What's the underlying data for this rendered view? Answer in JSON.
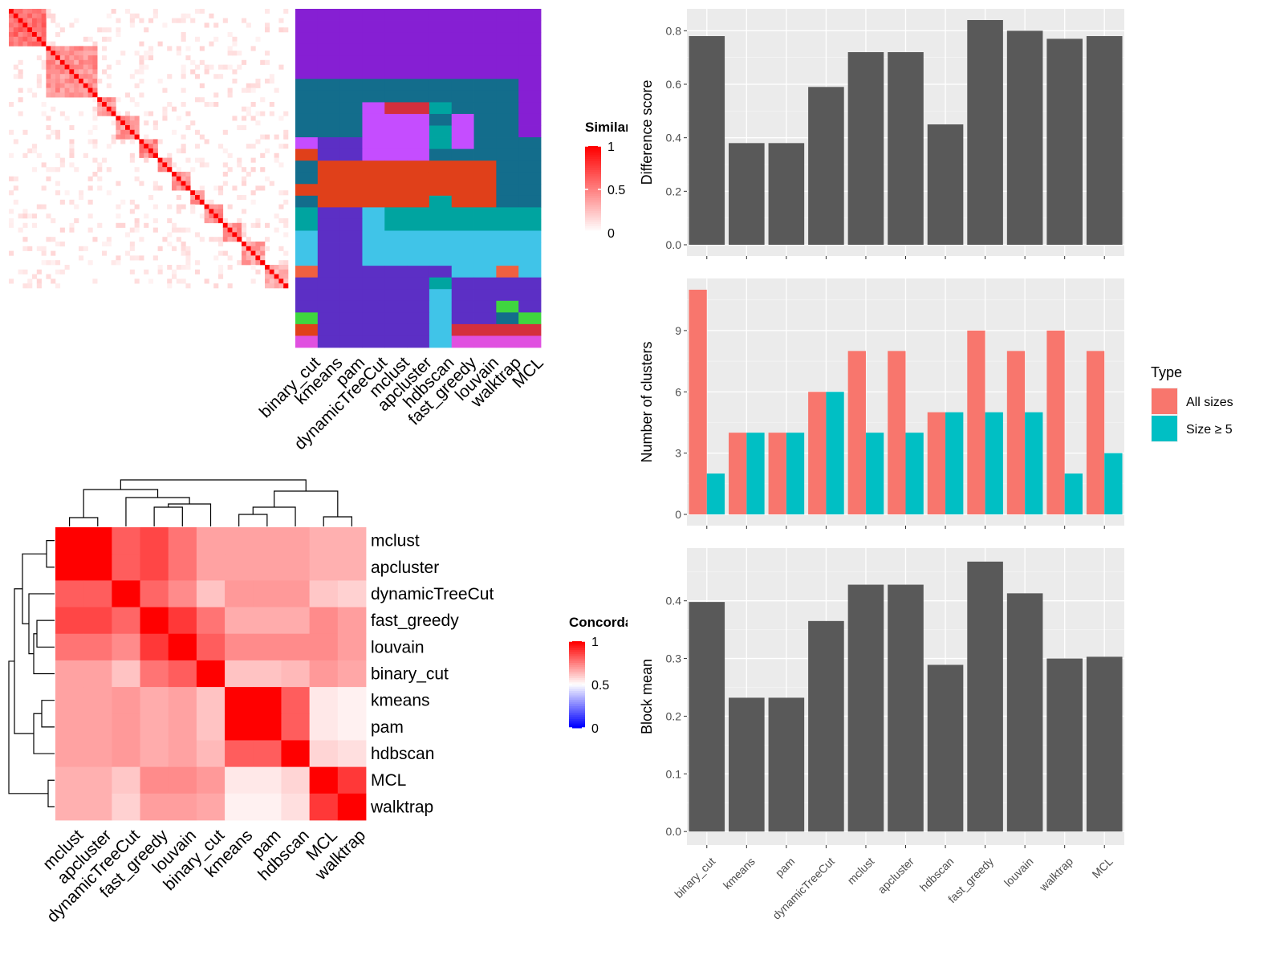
{
  "chart_data": [
    {
      "type": "heatmap",
      "id": "similarity-matrix",
      "title": "",
      "legend_title": "Similarity",
      "legend_ticks": [
        "1",
        "0.5",
        "0"
      ],
      "n": 60,
      "description_blocks": [
        {
          "start": 0,
          "end": 8,
          "strength": 0.45
        },
        {
          "start": 8,
          "end": 19,
          "strength": 0.3
        },
        {
          "start": 19,
          "end": 23,
          "strength": 0.3
        },
        {
          "start": 23,
          "end": 28,
          "strength": 0.3
        },
        {
          "start": 28,
          "end": 32,
          "strength": 0.35
        },
        {
          "start": 32,
          "end": 35,
          "strength": 0.3
        },
        {
          "start": 35,
          "end": 39,
          "strength": 0.3
        },
        {
          "start": 39,
          "end": 42,
          "strength": 0.3
        },
        {
          "start": 42,
          "end": 46,
          "strength": 0.3
        },
        {
          "start": 46,
          "end": 50,
          "strength": 0.3
        },
        {
          "start": 50,
          "end": 55,
          "strength": 0.25
        },
        {
          "start": 55,
          "end": 60,
          "strength": 0.2
        }
      ]
    },
    {
      "type": "heatmap",
      "id": "cluster-assignments",
      "methods": [
        "binary_cut",
        "kmeans",
        "pam",
        "dynamicTreeCut",
        "mclust",
        "apcluster",
        "hdbscan",
        "fast_greedy",
        "louvain",
        "walktrap",
        "MCL"
      ],
      "colors": [
        "#861fd3",
        "#136d8c",
        "#c54dff",
        "#d42f3d",
        "#00a4a0",
        "#5c2fc5",
        "#e0401a",
        "#40c4e8",
        "#3fd63f",
        "#e050e0",
        "#f06040"
      ],
      "rows": [
        [
          0,
          0,
          0,
          0,
          0,
          0,
          0,
          0,
          0,
          0,
          0
        ],
        [
          0,
          0,
          0,
          0,
          0,
          0,
          0,
          0,
          0,
          0,
          0
        ],
        [
          0,
          0,
          0,
          0,
          0,
          0,
          0,
          0,
          0,
          0,
          0
        ],
        [
          0,
          0,
          0,
          0,
          0,
          0,
          0,
          0,
          0,
          0,
          0
        ],
        [
          0,
          0,
          0,
          0,
          0,
          0,
          0,
          0,
          0,
          0,
          0
        ],
        [
          0,
          0,
          0,
          0,
          0,
          0,
          0,
          0,
          0,
          0,
          0
        ],
        [
          1,
          1,
          1,
          1,
          1,
          1,
          1,
          1,
          1,
          1,
          0
        ],
        [
          1,
          1,
          1,
          1,
          1,
          1,
          1,
          1,
          1,
          1,
          0
        ],
        [
          1,
          1,
          1,
          2,
          3,
          3,
          4,
          1,
          1,
          1,
          0
        ],
        [
          1,
          1,
          1,
          2,
          2,
          2,
          1,
          2,
          1,
          1,
          0
        ],
        [
          1,
          1,
          1,
          2,
          2,
          2,
          4,
          2,
          1,
          1,
          0
        ],
        [
          2,
          5,
          5,
          2,
          2,
          2,
          4,
          2,
          1,
          1,
          1
        ],
        [
          6,
          5,
          5,
          2,
          2,
          2,
          1,
          1,
          1,
          1,
          1
        ],
        [
          1,
          6,
          6,
          6,
          6,
          6,
          6,
          6,
          6,
          1,
          1
        ],
        [
          1,
          6,
          6,
          6,
          6,
          6,
          6,
          6,
          6,
          1,
          1
        ],
        [
          6,
          6,
          6,
          6,
          6,
          6,
          6,
          6,
          6,
          1,
          1
        ],
        [
          1,
          6,
          6,
          6,
          6,
          6,
          4,
          6,
          6,
          1,
          1
        ],
        [
          4,
          5,
          5,
          7,
          4,
          4,
          4,
          4,
          4,
          4,
          4
        ],
        [
          4,
          5,
          5,
          7,
          4,
          4,
          4,
          4,
          4,
          4,
          4
        ],
        [
          7,
          5,
          5,
          7,
          7,
          7,
          7,
          7,
          7,
          7,
          7
        ],
        [
          7,
          5,
          5,
          7,
          7,
          7,
          7,
          7,
          7,
          7,
          7
        ],
        [
          7,
          5,
          5,
          7,
          7,
          7,
          7,
          7,
          7,
          7,
          7
        ],
        [
          10,
          5,
          5,
          5,
          5,
          5,
          5,
          7,
          7,
          10,
          7
        ],
        [
          5,
          5,
          5,
          5,
          5,
          5,
          4,
          5,
          5,
          5,
          5
        ],
        [
          5,
          5,
          5,
          5,
          5,
          5,
          7,
          5,
          5,
          5,
          5
        ],
        [
          5,
          5,
          5,
          5,
          5,
          5,
          7,
          5,
          5,
          8,
          5
        ],
        [
          8,
          5,
          5,
          5,
          5,
          5,
          7,
          5,
          5,
          1,
          8
        ],
        [
          6,
          5,
          5,
          5,
          5,
          5,
          7,
          3,
          3,
          3,
          3
        ],
        [
          9,
          5,
          5,
          5,
          5,
          5,
          7,
          9,
          9,
          9,
          9
        ]
      ]
    },
    {
      "type": "heatmap",
      "id": "concordance-matrix",
      "legend_title": "Concordance",
      "legend_ticks": [
        "1",
        "0.5",
        "0"
      ],
      "row_labels": [
        "mclust",
        "apcluster",
        "dynamicTreeCut",
        "fast_greedy",
        "louvain",
        "binary_cut",
        "kmeans",
        "pam",
        "hdbscan",
        "MCL",
        "walktrap"
      ],
      "col_labels": [
        "mclust",
        "apcluster",
        "dynamicTreeCut",
        "fast_greedy",
        "louvain",
        "binary_cut",
        "kmeans",
        "pam",
        "hdbscan",
        "MCL",
        "walktrap"
      ],
      "values": [
        [
          1.0,
          1.0,
          0.8,
          0.85,
          0.75,
          0.65,
          0.65,
          0.65,
          0.65,
          0.62,
          0.62
        ],
        [
          1.0,
          1.0,
          0.8,
          0.85,
          0.75,
          0.65,
          0.65,
          0.65,
          0.65,
          0.62,
          0.62
        ],
        [
          0.8,
          0.8,
          1.0,
          0.78,
          0.7,
          0.58,
          0.67,
          0.67,
          0.67,
          0.57,
          0.55
        ],
        [
          0.85,
          0.85,
          0.78,
          1.0,
          0.88,
          0.75,
          0.63,
          0.63,
          0.63,
          0.7,
          0.66
        ],
        [
          0.75,
          0.75,
          0.7,
          0.88,
          1.0,
          0.8,
          0.7,
          0.7,
          0.7,
          0.7,
          0.66
        ],
        [
          0.65,
          0.65,
          0.58,
          0.75,
          0.8,
          1.0,
          0.58,
          0.58,
          0.6,
          0.67,
          0.64
        ],
        [
          0.65,
          0.65,
          0.67,
          0.63,
          0.65,
          0.58,
          1.0,
          1.0,
          0.8,
          0.5,
          0.48
        ],
        [
          0.65,
          0.65,
          0.67,
          0.63,
          0.65,
          0.58,
          1.0,
          1.0,
          0.8,
          0.5,
          0.48
        ],
        [
          0.65,
          0.65,
          0.67,
          0.63,
          0.65,
          0.6,
          0.8,
          0.8,
          1.0,
          0.54,
          0.52
        ],
        [
          0.62,
          0.62,
          0.57,
          0.7,
          0.7,
          0.67,
          0.5,
          0.5,
          0.54,
          1.0,
          0.88
        ],
        [
          0.62,
          0.62,
          0.55,
          0.66,
          0.66,
          0.64,
          0.48,
          0.48,
          0.52,
          0.88,
          1.0
        ]
      ]
    },
    {
      "type": "bar",
      "id": "difference-score",
      "categories": [
        "binary_cut",
        "kmeans",
        "pam",
        "dynamicTreeCut",
        "mclust",
        "apcluster",
        "hdbscan",
        "fast_greedy",
        "louvain",
        "walktrap",
        "MCL"
      ],
      "values": [
        0.78,
        0.38,
        0.38,
        0.59,
        0.72,
        0.72,
        0.45,
        0.84,
        0.8,
        0.77,
        0.78
      ],
      "ylabel": "Difference score",
      "ylim": [
        0,
        0.84
      ],
      "yticks": [
        "0.0",
        "0.2",
        "0.4",
        "0.6",
        "0.8"
      ],
      "color": "#595959",
      "grid": true
    },
    {
      "type": "bar",
      "id": "number-of-clusters",
      "categories": [
        "binary_cut",
        "kmeans",
        "pam",
        "dynamicTreeCut",
        "mclust",
        "apcluster",
        "hdbscan",
        "fast_greedy",
        "louvain",
        "walktrap",
        "MCL"
      ],
      "series": [
        {
          "name": "All sizes",
          "values": [
            11,
            4,
            4,
            6,
            8,
            8,
            5,
            9,
            8,
            9,
            8
          ],
          "color": "#f8766d"
        },
        {
          "name": "Size ≥ 5",
          "values": [
            2,
            4,
            4,
            6,
            4,
            4,
            5,
            5,
            5,
            2,
            3
          ],
          "color": "#00bfc4"
        }
      ],
      "ylabel": "Number of clusters",
      "ylim": [
        0,
        11
      ],
      "yticks": [
        "0",
        "3",
        "6",
        "9"
      ],
      "legend_title": "Type",
      "legend_position": "right",
      "grid": true
    },
    {
      "type": "bar",
      "id": "block-mean",
      "categories": [
        "binary_cut",
        "kmeans",
        "pam",
        "dynamicTreeCut",
        "mclust",
        "apcluster",
        "hdbscan",
        "fast_greedy",
        "louvain",
        "walktrap",
        "MCL"
      ],
      "values": [
        0.398,
        0.232,
        0.232,
        0.365,
        0.428,
        0.428,
        0.289,
        0.468,
        0.413,
        0.3,
        0.303
      ],
      "ylabel": "Block mean",
      "ylim": [
        0,
        0.468
      ],
      "yticks": [
        "0.0",
        "0.1",
        "0.2",
        "0.3",
        "0.4"
      ],
      "color": "#595959",
      "grid": true
    }
  ]
}
